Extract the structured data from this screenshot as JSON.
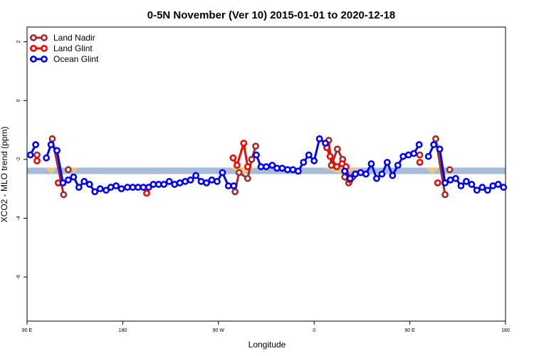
{
  "chart_data": {
    "type": "line",
    "title": "0-5N November (Ver 10)   2015-01-01 to 2020-12-18",
    "xlabel": "Longitude",
    "ylabel": "XCO2 - MLO trend (ppm)",
    "xlim": [
      0,
      360
    ],
    "ylim": [
      -7.5,
      2.5
    ],
    "x_ticks": [
      {
        "value": 0,
        "label": "90 E"
      },
      {
        "value": 72,
        "label": "180"
      },
      {
        "value": 144,
        "label": "90 W"
      },
      {
        "value": 216,
        "label": "0"
      },
      {
        "value": 288,
        "label": "90 E"
      },
      {
        "value": 360,
        "label": "180"
      }
    ],
    "y_ticks": [
      2,
      0,
      -2,
      -4,
      -6
    ],
    "legend_position": "top-left",
    "band": {
      "y_low": -2.5,
      "y_high": -2.28,
      "color": "#a7bcd8",
      "accent_color": "#f4cd68"
    },
    "series": [
      {
        "name": "Land Nadir",
        "color": "#a52a2a",
        "segments": [
          [
            [
              7.5,
              -1.85
            ]
          ],
          [
            [
              19.0,
              -1.3
            ],
            [
              27.5,
              -3.2
            ]
          ],
          [
            [
              31.0,
              -2.35
            ]
          ],
          [
            [
              156.5,
              -3.1
            ],
            [
              159.5,
              -2.45
            ],
            [
              166.0,
              -2.65
            ],
            [
              169.0,
              -2.0
            ],
            [
              172.0,
              -1.55
            ]
          ],
          [
            [
              227.0,
              -1.35
            ],
            [
              229.0,
              -2.2
            ],
            [
              233.5,
              -1.65
            ],
            [
              237.5,
              -2.0
            ],
            [
              239.0,
              -2.6
            ],
            [
              242.0,
              -2.8
            ],
            [
              245.0,
              -2.6
            ]
          ],
          [
            [
              295.5,
              -1.85
            ]
          ],
          [
            [
              307.5,
              -1.3
            ],
            [
              314.5,
              -3.2
            ]
          ],
          [
            [
              318.0,
              -2.35
            ]
          ]
        ]
      },
      {
        "name": "Land Glint",
        "color": "#ff0000",
        "segments": [
          [
            [
              7.5,
              -2.05
            ]
          ],
          [
            [
              23.5,
              -2.8
            ]
          ],
          [
            [
              90.0,
              -3.15
            ]
          ],
          [
            [
              155.0,
              -1.95
            ],
            [
              158.0,
              -2.2
            ],
            [
              163.0,
              -1.45
            ],
            [
              166.0,
              -2.25
            ]
          ],
          [
            [
              225.5,
              -1.6
            ],
            [
              228.0,
              -1.9
            ],
            [
              233.0,
              -2.25
            ],
            [
              237.0,
              -2.15
            ],
            [
              240.0,
              -2.25
            ],
            [
              243.0,
              -2.7
            ]
          ],
          [
            [
              295.5,
              -2.1
            ]
          ],
          [
            [
              309.0,
              -2.8
            ]
          ]
        ]
      },
      {
        "name": "Ocean Glint",
        "color": "#0000ff",
        "segments": [
          [
            [
              2.5,
              -1.85
            ],
            [
              6.5,
              -1.5
            ]
          ],
          [
            [
              14.5,
              -1.95
            ],
            [
              18.0,
              -1.5
            ],
            [
              22.5,
              -1.7
            ],
            [
              27.0,
              -2.8
            ],
            [
              31.0,
              -2.7
            ],
            [
              35.0,
              -2.6
            ],
            [
              39.0,
              -2.95
            ],
            [
              43.0,
              -2.75
            ],
            [
              47.0,
              -2.85
            ],
            [
              51.0,
              -3.1
            ],
            [
              55.0,
              -3.0
            ],
            [
              59.5,
              -3.05
            ],
            [
              63.0,
              -2.95
            ],
            [
              67.0,
              -2.9
            ],
            [
              71.0,
              -3.0
            ],
            [
              75.5,
              -2.95
            ],
            [
              79.5,
              -2.95
            ],
            [
              83.5,
              -2.95
            ],
            [
              87.5,
              -2.95
            ],
            [
              91.5,
              -2.95
            ],
            [
              95.0,
              -2.85
            ],
            [
              99.0,
              -2.85
            ],
            [
              103.0,
              -2.85
            ],
            [
              107.0,
              -2.75
            ],
            [
              111.0,
              -2.85
            ],
            [
              115.0,
              -2.8
            ],
            [
              119.0,
              -2.75
            ],
            [
              123.0,
              -2.7
            ],
            [
              127.0,
              -2.55
            ],
            [
              131.0,
              -2.75
            ],
            [
              135.0,
              -2.8
            ],
            [
              139.0,
              -2.7
            ],
            [
              143.0,
              -2.75
            ],
            [
              147.0,
              -2.45
            ],
            [
              151.5,
              -2.9
            ],
            [
              155.5,
              -2.9
            ]
          ],
          [
            [
              172.5,
              -1.85
            ],
            [
              176.0,
              -2.25
            ],
            [
              180.0,
              -2.25
            ],
            [
              184.5,
              -2.2
            ],
            [
              188.0,
              -2.3
            ],
            [
              192.0,
              -2.3
            ],
            [
              196.0,
              -2.35
            ],
            [
              200.0,
              -2.35
            ],
            [
              204.0,
              -2.4
            ],
            [
              208.0,
              -2.1
            ],
            [
              212.0,
              -1.85
            ],
            [
              216.0,
              -2.05
            ],
            [
              220.0,
              -1.3
            ],
            [
              224.5,
              -1.45
            ]
          ],
          [
            [
              239.0,
              -2.4
            ],
            [
              243.0,
              -2.65
            ],
            [
              247.0,
              -2.5
            ],
            [
              251.0,
              -2.45
            ],
            [
              255.0,
              -2.5
            ],
            [
              259.0,
              -2.15
            ],
            [
              263.0,
              -2.65
            ],
            [
              267.0,
              -2.5
            ],
            [
              271.0,
              -2.1
            ],
            [
              275.0,
              -2.55
            ],
            [
              279.0,
              -2.2
            ],
            [
              283.0,
              -1.9
            ],
            [
              287.0,
              -1.85
            ],
            [
              291.0,
              -1.8
            ],
            [
              295.0,
              -1.5
            ]
          ],
          [
            [
              302.0,
              -1.9
            ],
            [
              306.0,
              -1.5
            ],
            [
              310.5,
              -1.65
            ],
            [
              314.5,
              -2.8
            ],
            [
              318.5,
              -2.7
            ],
            [
              322.5,
              -2.65
            ],
            [
              326.5,
              -2.9
            ],
            [
              330.5,
              -2.75
            ],
            [
              334.5,
              -2.85
            ],
            [
              338.5,
              -3.05
            ],
            [
              342.5,
              -2.95
            ],
            [
              346.5,
              -3.05
            ],
            [
              350.5,
              -2.9
            ],
            [
              354.5,
              -2.85
            ],
            [
              358.5,
              -2.95
            ]
          ]
        ]
      }
    ]
  }
}
